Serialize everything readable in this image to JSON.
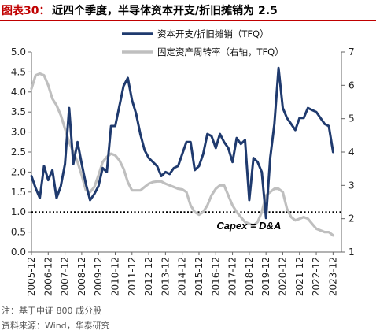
{
  "title": {
    "prefix": "图表30：",
    "text": "近四个季度，半导体资本开支/折旧摊销为 2.5"
  },
  "note": "注：基于中证 800 成分股",
  "source": "资料来源：Wind，华泰研究",
  "chart_data": {
    "type": "line",
    "annotation": "Capex = D&A",
    "reference_line": {
      "axis": "left",
      "value": 1.0,
      "style": "dotted"
    },
    "legend_position": "top",
    "x_range": [
      2005.75,
      2024.25
    ],
    "x_tick_labels": [
      "2005-12",
      "2006-12",
      "2007-12",
      "2008-12",
      "2009-12",
      "2010-12",
      "2011-12",
      "2012-12",
      "2013-12",
      "2014-12",
      "2015-12",
      "2016-12",
      "2017-12",
      "2018-12",
      "2019-12",
      "2020-12",
      "2021-12",
      "2022-12",
      "2023-12"
    ],
    "y_left": {
      "min": 0,
      "max": 5,
      "ticks": [
        "0.0",
        "0.5",
        "1.0",
        "1.5",
        "2.0",
        "2.5",
        "3.0",
        "3.5",
        "4.0",
        "4.5",
        "5.0"
      ]
    },
    "y_right": {
      "min": 1,
      "max": 7,
      "ticks": [
        "1",
        "2",
        "3",
        "4",
        "5",
        "6",
        "7"
      ]
    },
    "series": [
      {
        "name": "资本开支/折旧摊销（TFQ）",
        "axis": "left",
        "color": "#1f3a6e",
        "points": [
          [
            2005.75,
            1.9
          ],
          [
            2006.0,
            1.6
          ],
          [
            2006.25,
            1.35
          ],
          [
            2006.5,
            2.15
          ],
          [
            2006.75,
            1.8
          ],
          [
            2007.0,
            2.05
          ],
          [
            2007.25,
            1.35
          ],
          [
            2007.5,
            1.65
          ],
          [
            2007.75,
            2.2
          ],
          [
            2008.0,
            3.6
          ],
          [
            2008.25,
            2.2
          ],
          [
            2008.5,
            2.75
          ],
          [
            2008.75,
            2.2
          ],
          [
            2009.0,
            1.7
          ],
          [
            2009.25,
            1.3
          ],
          [
            2009.5,
            1.45
          ],
          [
            2009.75,
            1.65
          ],
          [
            2010.0,
            2.1
          ],
          [
            2010.25,
            2.0
          ],
          [
            2010.5,
            3.15
          ],
          [
            2010.75,
            3.15
          ],
          [
            2011.0,
            3.65
          ],
          [
            2011.25,
            4.15
          ],
          [
            2011.5,
            4.35
          ],
          [
            2011.75,
            3.8
          ],
          [
            2012.0,
            3.45
          ],
          [
            2012.25,
            2.95
          ],
          [
            2012.5,
            2.55
          ],
          [
            2012.75,
            2.35
          ],
          [
            2013.0,
            2.25
          ],
          [
            2013.25,
            2.15
          ],
          [
            2013.5,
            1.9
          ],
          [
            2013.75,
            2.0
          ],
          [
            2014.0,
            1.95
          ],
          [
            2014.25,
            2.1
          ],
          [
            2014.5,
            2.15
          ],
          [
            2014.75,
            2.45
          ],
          [
            2015.0,
            2.75
          ],
          [
            2015.25,
            2.75
          ],
          [
            2015.5,
            2.05
          ],
          [
            2015.75,
            2.15
          ],
          [
            2016.0,
            2.45
          ],
          [
            2016.25,
            2.95
          ],
          [
            2016.5,
            2.9
          ],
          [
            2016.75,
            2.6
          ],
          [
            2017.0,
            2.95
          ],
          [
            2017.25,
            2.75
          ],
          [
            2017.5,
            2.6
          ],
          [
            2017.75,
            2.25
          ],
          [
            2018.0,
            2.85
          ],
          [
            2018.25,
            2.7
          ],
          [
            2018.5,
            2.8
          ],
          [
            2018.75,
            1.3
          ],
          [
            2019.0,
            2.35
          ],
          [
            2019.25,
            2.25
          ],
          [
            2019.5,
            2.0
          ],
          [
            2019.75,
            0.85
          ],
          [
            2020.0,
            2.35
          ],
          [
            2020.25,
            3.2
          ],
          [
            2020.5,
            4.6
          ],
          [
            2020.75,
            3.6
          ],
          [
            2021.0,
            3.35
          ],
          [
            2021.25,
            3.2
          ],
          [
            2021.5,
            3.05
          ],
          [
            2021.75,
            3.35
          ],
          [
            2022.0,
            3.35
          ],
          [
            2022.25,
            3.6
          ],
          [
            2022.5,
            3.55
          ],
          [
            2022.75,
            3.5
          ],
          [
            2023.0,
            3.35
          ],
          [
            2023.25,
            3.2
          ],
          [
            2023.5,
            3.15
          ],
          [
            2023.75,
            2.5
          ]
        ]
      },
      {
        "name": "固定资产周转率（右轴，TFQ）",
        "axis": "right",
        "color": "#bfbfbf",
        "points": [
          [
            2005.75,
            5.9
          ],
          [
            2006.0,
            6.3
          ],
          [
            2006.25,
            6.35
          ],
          [
            2006.5,
            6.3
          ],
          [
            2006.75,
            6.0
          ],
          [
            2007.0,
            5.6
          ],
          [
            2007.25,
            5.4
          ],
          [
            2007.5,
            5.1
          ],
          [
            2007.75,
            4.7
          ],
          [
            2008.0,
            4.3
          ],
          [
            2008.25,
            4.0
          ],
          [
            2008.5,
            3.7
          ],
          [
            2008.75,
            3.3
          ],
          [
            2009.0,
            2.85
          ],
          [
            2009.25,
            2.8
          ],
          [
            2009.5,
            2.95
          ],
          [
            2009.75,
            3.3
          ],
          [
            2010.0,
            3.7
          ],
          [
            2010.25,
            3.85
          ],
          [
            2010.5,
            3.95
          ],
          [
            2010.75,
            3.9
          ],
          [
            2011.0,
            3.75
          ],
          [
            2011.25,
            3.5
          ],
          [
            2011.5,
            3.1
          ],
          [
            2011.75,
            2.85
          ],
          [
            2012.0,
            2.85
          ],
          [
            2012.25,
            2.85
          ],
          [
            2012.5,
            2.95
          ],
          [
            2012.75,
            3.05
          ],
          [
            2013.0,
            3.1
          ],
          [
            2013.25,
            3.12
          ],
          [
            2013.5,
            3.12
          ],
          [
            2013.75,
            3.05
          ],
          [
            2014.0,
            3.0
          ],
          [
            2014.25,
            2.95
          ],
          [
            2014.5,
            2.9
          ],
          [
            2014.75,
            2.88
          ],
          [
            2015.0,
            2.8
          ],
          [
            2015.25,
            2.4
          ],
          [
            2015.5,
            2.2
          ],
          [
            2015.75,
            2.12
          ],
          [
            2016.0,
            2.2
          ],
          [
            2016.25,
            2.4
          ],
          [
            2016.5,
            2.7
          ],
          [
            2016.75,
            2.9
          ],
          [
            2017.0,
            3.0
          ],
          [
            2017.25,
            3.0
          ],
          [
            2017.5,
            2.7
          ],
          [
            2017.75,
            2.4
          ],
          [
            2018.0,
            2.2
          ],
          [
            2018.25,
            2.05
          ],
          [
            2018.5,
            1.9
          ],
          [
            2018.75,
            1.85
          ],
          [
            2019.0,
            1.8
          ],
          [
            2019.25,
            1.9
          ],
          [
            2019.5,
            2.2
          ],
          [
            2019.75,
            2.7
          ],
          [
            2020.0,
            2.8
          ],
          [
            2020.25,
            2.9
          ],
          [
            2020.5,
            2.9
          ],
          [
            2020.75,
            2.8
          ],
          [
            2021.0,
            2.3
          ],
          [
            2021.25,
            2.05
          ],
          [
            2021.5,
            1.95
          ],
          [
            2021.75,
            2.0
          ],
          [
            2022.0,
            2.05
          ],
          [
            2022.25,
            2.0
          ],
          [
            2022.5,
            1.85
          ],
          [
            2022.75,
            1.7
          ],
          [
            2023.0,
            1.65
          ],
          [
            2023.25,
            1.6
          ],
          [
            2023.5,
            1.6
          ],
          [
            2023.75,
            1.5
          ]
        ]
      }
    ]
  }
}
